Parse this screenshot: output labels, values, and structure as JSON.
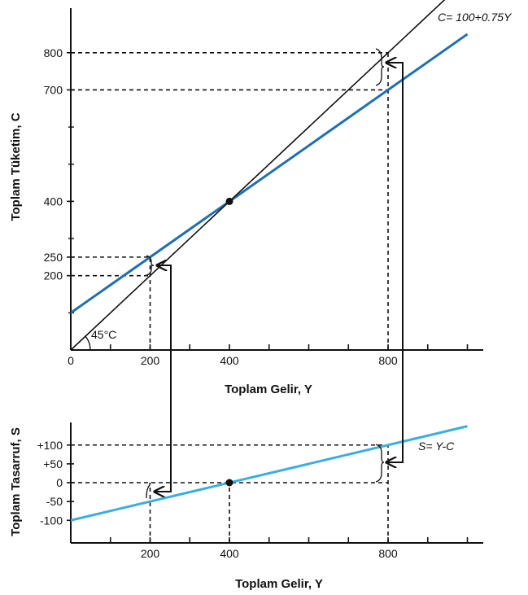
{
  "colors": {
    "consumption_line": "#1f6fb2",
    "saving_line": "#3aaedf",
    "axis": "#111111",
    "guide": "#111111"
  },
  "chart_data": [
    {
      "type": "line",
      "title": "",
      "xlabel": "Toplam Gelir, Y",
      "ylabel": "Toplam Tüketim, C",
      "xlim": [
        0,
        1040
      ],
      "ylim": [
        0,
        920
      ],
      "x_ticks": [
        0,
        200,
        400,
        800
      ],
      "x_tick_labels": [
        "0",
        "200",
        "400",
        "800"
      ],
      "y_ticks": [
        200,
        250,
        400,
        700,
        800
      ],
      "y_tick_labels": [
        "200",
        "250",
        "400",
        "700",
        "800"
      ],
      "series": [
        {
          "name": "C= 100+0.75Y",
          "x": [
            0,
            1000
          ],
          "y": [
            100,
            850
          ],
          "color": "#1f6fb2"
        },
        {
          "name": "",
          "x": [
            0,
            1000
          ],
          "y": [
            0,
            1000
          ],
          "color": "#111111"
        }
      ],
      "points": [
        {
          "x": 400,
          "y": 400
        }
      ],
      "angle_label": "45°C",
      "guides": [
        {
          "from": [
            0,
            250
          ],
          "to": [
            200,
            250
          ]
        },
        {
          "from": [
            0,
            200
          ],
          "to": [
            200,
            200
          ]
        },
        {
          "from": [
            200,
            0
          ],
          "to": [
            200,
            250
          ]
        },
        {
          "from": [
            0,
            800
          ],
          "to": [
            800,
            800
          ]
        },
        {
          "from": [
            0,
            700
          ],
          "to": [
            800,
            700
          ]
        },
        {
          "from": [
            800,
            0
          ],
          "to": [
            800,
            800
          ]
        }
      ],
      "grid": false
    },
    {
      "type": "line",
      "title": "",
      "xlabel": "Toplam Gelir, Y",
      "ylabel": "Toplam Tasarruf, S",
      "xlim": [
        0,
        1040
      ],
      "ylim": [
        -160,
        160
      ],
      "x_ticks": [
        200,
        400,
        800
      ],
      "x_tick_labels": [
        "200",
        "400",
        "800"
      ],
      "y_ticks": [
        -100,
        -50,
        0,
        50,
        100
      ],
      "y_tick_labels": [
        "-100",
        "-50",
        "0",
        "+50",
        "+100"
      ],
      "series": [
        {
          "name": "S= Y-C",
          "x": [
            0,
            1000
          ],
          "y": [
            -100,
            150
          ],
          "color": "#3aaedf"
        }
      ],
      "points": [
        {
          "x": 400,
          "y": 0
        }
      ],
      "guides": [
        {
          "from": [
            0,
            0
          ],
          "to": [
            800,
            0
          ]
        },
        {
          "from": [
            0,
            100
          ],
          "to": [
            800,
            100
          ]
        },
        {
          "from": [
            200,
            -160
          ],
          "to": [
            200,
            0
          ]
        },
        {
          "from": [
            400,
            -160
          ],
          "to": [
            400,
            0
          ]
        },
        {
          "from": [
            800,
            -160
          ],
          "to": [
            800,
            100
          ]
        }
      ],
      "grid": false
    }
  ]
}
